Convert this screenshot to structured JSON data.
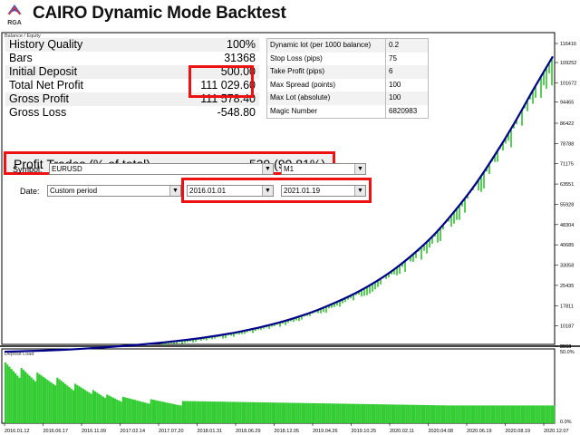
{
  "header": {
    "logo_text": "RGA",
    "title": "CAIRO Dynamic Mode Backtest"
  },
  "chart_labels": {
    "top_panel": "Balance / Equity",
    "bottom_panel": "Deposit Load"
  },
  "stats": [
    {
      "label": "History Quality",
      "value": "100%"
    },
    {
      "label": "Bars",
      "value": "31368"
    },
    {
      "label": "Initial Deposit",
      "value": "500.00"
    },
    {
      "label": "Total Net Profit",
      "value": "111 029.60"
    },
    {
      "label": "Gross Profit",
      "value": "111 578.40"
    },
    {
      "label": "Gross Loss",
      "value": "-548.80"
    }
  ],
  "profit_trades": {
    "label": "Profit Trades (% of total)",
    "value": "539 (99.81%)"
  },
  "params": [
    {
      "label": "Dynamic lot (per 1000 balance)",
      "value": "0.2"
    },
    {
      "label": "Stop Loss (pips)",
      "value": "75"
    },
    {
      "label": "Take Profit (pips)",
      "value": "6"
    },
    {
      "label": "Max Spread (points)",
      "value": "100"
    },
    {
      "label": "Max Lot (absolute)",
      "value": "100"
    },
    {
      "label": "Magic Number",
      "value": "6820983"
    }
  ],
  "form": {
    "symbol_label": "Symbol:",
    "symbol_value": "EURUSD",
    "timeframe_value": "M1",
    "date_label": "Date:",
    "period_value": "Custom period",
    "from_date": "2016.01.01",
    "to_date": "2021.01.19",
    "dropdown_glyph": "▼"
  },
  "chart_data": [
    {
      "type": "line",
      "title": "Balance / Equity",
      "y_ticks": [
        116416,
        109252,
        101672,
        94465,
        86422,
        78788,
        71175,
        63551,
        55928,
        48304,
        40685,
        33058,
        25435,
        17811,
        10187,
        2564
      ],
      "y_bottom_label": "5063",
      "ylim": [
        2564,
        116416
      ],
      "series": [
        {
          "values": [
            500,
            700,
            900,
            1200,
            1600,
            2100,
            2600,
            3200,
            3900,
            4700,
            5600,
            6700,
            8000,
            9600,
            11400,
            13600,
            16200,
            19300,
            22800,
            27000,
            32000,
            38000,
            45000,
            53500,
            63000,
            74000,
            86000,
            99000,
            111529
          ],
          "color": "#00008b"
        }
      ],
      "equity_color": "#00b000",
      "grid": false
    },
    {
      "type": "bar",
      "title": "Deposit Load",
      "y_top_label": "50.0%",
      "y_bottom_label": "0.0%",
      "ylim": [
        0,
        50
      ],
      "color": "#33cc33",
      "x_tick_labels": [
        "2016.01.12",
        "2016.06.17",
        "2016.11.09",
        "2017.02.14",
        "2017.07.20",
        "2018.01.31",
        "2018.06.29",
        "2018.12.05",
        "2019.04.26",
        "2019.10.25",
        "2020.02.11",
        "2020.04.08",
        "2020.06.19",
        "2020.08.19",
        "2020.12.07"
      ]
    }
  ]
}
